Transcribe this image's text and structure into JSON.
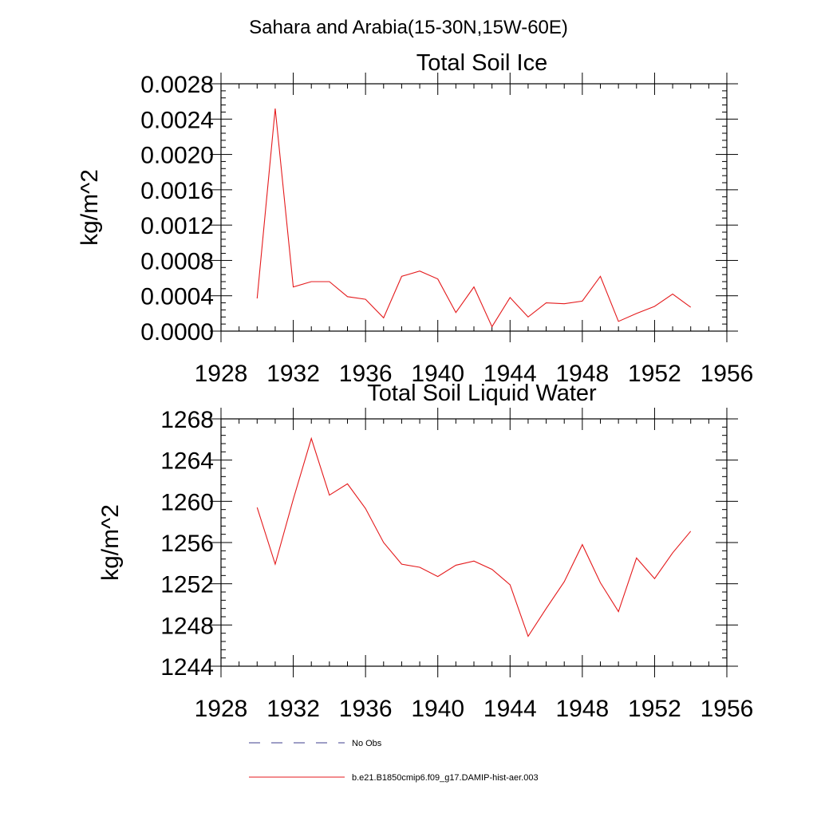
{
  "figure": {
    "main_title": "Sahara and Arabia(15-30N,15W-60E)"
  },
  "legend": [
    {
      "label": "No Obs",
      "color": "#3c3c8c",
      "style": "dashed"
    },
    {
      "label": "b.e21.B1850cmip6.f09_g17.DAMIP-hist-aer.003",
      "color": "#e41a1c",
      "style": "solid"
    }
  ],
  "chart_data": [
    {
      "type": "line",
      "title": "Total Soil Ice",
      "xlabel": "",
      "ylabel": "kg/m^2",
      "xlim": [
        1928,
        1956
      ],
      "ylim": [
        0.0,
        0.0028
      ],
      "x_ticks": [
        1928,
        1932,
        1936,
        1940,
        1944,
        1948,
        1952,
        1956
      ],
      "x_tick_labels": [
        "1928",
        "1932",
        "1936",
        "1940",
        "1944",
        "1948",
        "1952",
        "1956"
      ],
      "y_ticks": [
        0.0,
        0.0004,
        0.0008,
        0.0012,
        0.0016,
        0.002,
        0.0024,
        0.0028
      ],
      "y_tick_labels": [
        "0.0000",
        "0.0004",
        "0.0008",
        "0.0012",
        "0.0016",
        "0.0020",
        "0.0024",
        "0.0028"
      ],
      "grid": false,
      "series": [
        {
          "name": "b.e21.B1850cmip6.f09_g17.DAMIP-hist-aer.003",
          "color": "#e41a1c",
          "x": [
            1930,
            1931,
            1932,
            1933,
            1934,
            1935,
            1936,
            1937,
            1938,
            1939,
            1940,
            1941,
            1942,
            1943,
            1944,
            1945,
            1946,
            1947,
            1948,
            1949,
            1950,
            1951,
            1952,
            1953,
            1954
          ],
          "y": [
            0.00037,
            0.00252,
            0.0005,
            0.00056,
            0.00056,
            0.00039,
            0.00036,
            0.00015,
            0.00062,
            0.00068,
            0.00059,
            0.00021,
            0.0005,
            5e-05,
            0.00038,
            0.00016,
            0.00032,
            0.00031,
            0.00034,
            0.00062,
            0.00011,
            0.0002,
            0.00028,
            0.00042,
            0.00027
          ]
        }
      ]
    },
    {
      "type": "line",
      "title": "Total Soil Liquid Water",
      "xlabel": "",
      "ylabel": "kg/m^2",
      "xlim": [
        1928,
        1956
      ],
      "ylim": [
        1244,
        1268
      ],
      "x_ticks": [
        1928,
        1932,
        1936,
        1940,
        1944,
        1948,
        1952,
        1956
      ],
      "x_tick_labels": [
        "1928",
        "1932",
        "1936",
        "1940",
        "1944",
        "1948",
        "1952",
        "1956"
      ],
      "y_ticks": [
        1244,
        1248,
        1252,
        1256,
        1260,
        1264,
        1268
      ],
      "y_tick_labels": [
        "1244",
        "1248",
        "1252",
        "1256",
        "1260",
        "1264",
        "1268"
      ],
      "grid": false,
      "series": [
        {
          "name": "b.e21.B1850cmip6.f09_g17.DAMIP-hist-aer.003",
          "color": "#e41a1c",
          "x": [
            1930,
            1931,
            1932,
            1933,
            1934,
            1935,
            1936,
            1937,
            1938,
            1939,
            1940,
            1941,
            1942,
            1943,
            1944,
            1945,
            1946,
            1947,
            1948,
            1949,
            1950,
            1951,
            1952,
            1953,
            1954
          ],
          "y": [
            1259.4,
            1253.9,
            1260.2,
            1266.1,
            1260.6,
            1261.7,
            1259.3,
            1256.0,
            1253.9,
            1253.6,
            1252.7,
            1253.8,
            1254.2,
            1253.4,
            1251.9,
            1246.9,
            1249.6,
            1252.2,
            1255.8,
            1252.1,
            1249.3,
            1254.5,
            1252.5,
            1255.0,
            1257.1
          ]
        }
      ]
    }
  ]
}
